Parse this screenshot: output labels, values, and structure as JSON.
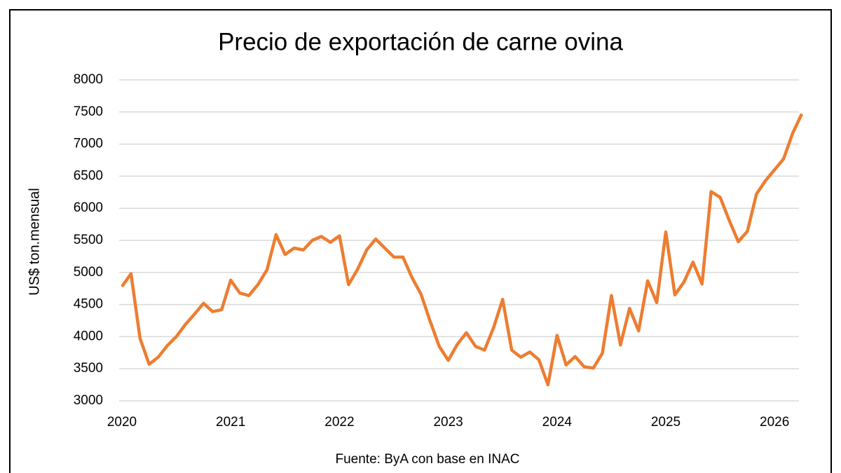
{
  "chart_data": {
    "type": "line",
    "title": "Precio de exportación de carne ovina",
    "y_label": "US$ ton.mensual",
    "source": "Fuente: ByA con base en INAC",
    "categories": [
      "2020",
      null,
      null,
      null,
      null,
      null,
      null,
      null,
      null,
      null,
      null,
      null,
      "2021",
      null,
      null,
      null,
      null,
      null,
      null,
      null,
      null,
      null,
      null,
      null,
      "2022",
      null,
      null,
      null,
      null,
      null,
      null,
      null,
      null,
      null,
      null,
      null,
      "2023",
      null,
      null,
      null,
      null,
      null,
      null,
      null,
      null,
      null,
      null,
      null,
      "2024",
      null,
      null,
      null,
      null,
      null,
      null,
      null,
      null,
      null,
      null,
      null,
      "2025",
      null,
      null,
      null,
      null,
      null,
      null,
      null,
      null,
      null,
      null,
      null,
      "2026",
      null,
      null,
      null
    ],
    "series": [
      {
        "color": "#ed7d31",
        "values": [
          4780,
          4980,
          3970,
          3570,
          3680,
          3860,
          4000,
          4190,
          4350,
          4520,
          4390,
          4420,
          4880,
          4680,
          4640,
          4810,
          5040,
          5590,
          5280,
          5380,
          5350,
          5500,
          5560,
          5470,
          5570,
          4810,
          5050,
          5350,
          5520,
          5380,
          5240,
          5240,
          4920,
          4660,
          4240,
          3850,
          3630,
          3880,
          4060,
          3850,
          3790,
          4140,
          4580,
          3790,
          3680,
          3760,
          3640,
          3250,
          4020,
          3560,
          3690,
          3530,
          3510,
          3740,
          4640,
          3870,
          4440,
          4090,
          4870,
          4530,
          5630,
          4650,
          4850,
          5160,
          4820,
          6260,
          6170,
          5810,
          5480,
          5640,
          6220,
          6430,
          6600,
          6770,
          7170,
          7470
        ]
      }
    ],
    "ylim": [
      3000,
      8000
    ],
    "yticks": [
      3000,
      3500,
      4000,
      4500,
      5000,
      5500,
      6000,
      6500,
      7000,
      7500,
      8000
    ],
    "grid": true
  }
}
